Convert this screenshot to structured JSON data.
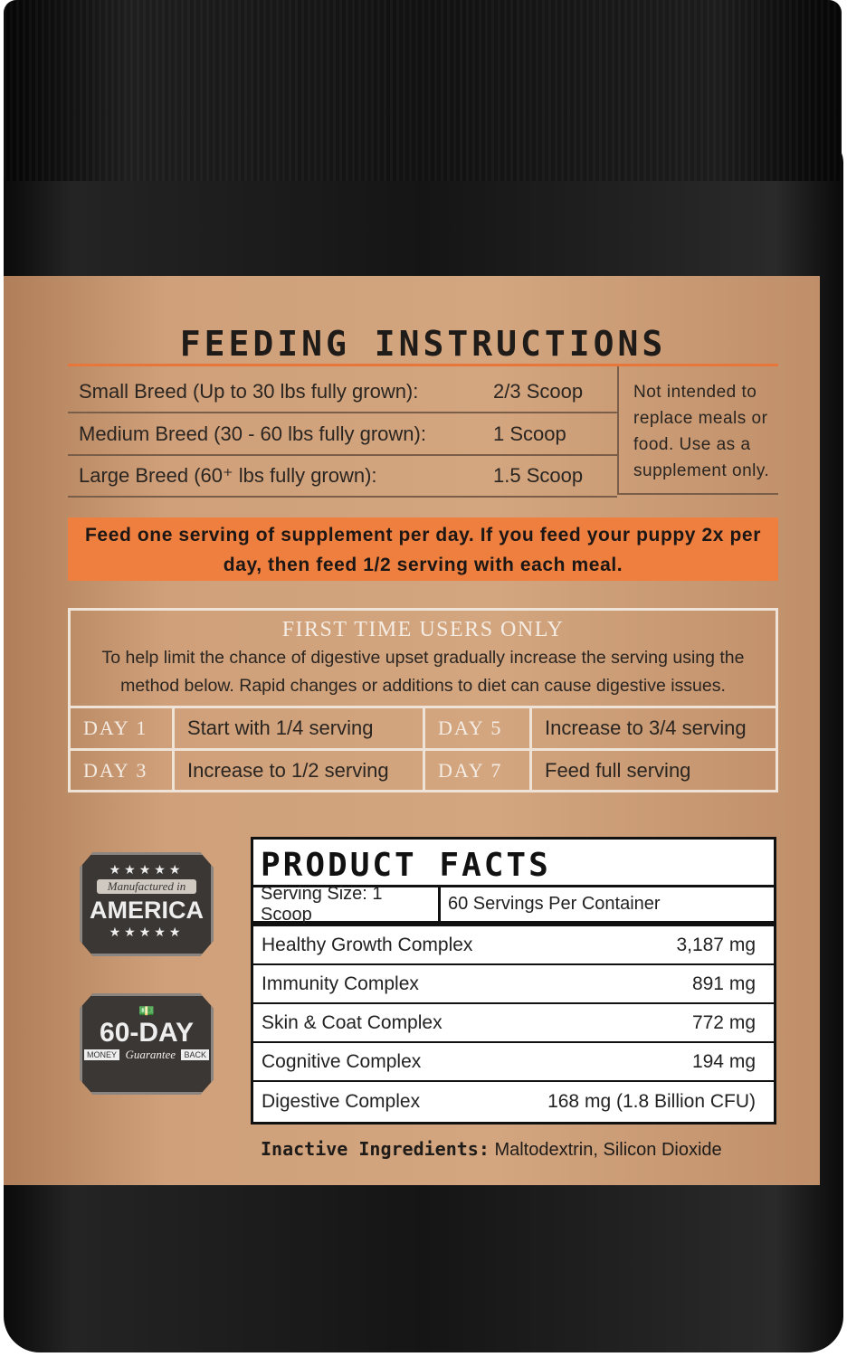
{
  "feeding": {
    "title": "FEEDING INSTRUCTIONS",
    "rows": [
      {
        "breed": "Small Breed (Up to 30 lbs fully grown):",
        "amount": "2/3 Scoop"
      },
      {
        "breed": "Medium Breed (30 - 60 lbs fully grown):",
        "amount": "1 Scoop"
      },
      {
        "breed": "Large Breed (60⁺ lbs fully grown):",
        "amount": "1.5 Scoop"
      }
    ],
    "note": "Not intended to replace meals or food. Use as a supplement only.",
    "callout": "Feed one serving of supplement per day. If you feed your puppy 2x per day, then feed 1/2 serving with each meal."
  },
  "first_time": {
    "title": "FIRST TIME USERS ONLY",
    "text": "To help limit the chance of digestive upset gradually increase the serving using the method below. Rapid changes or additions to diet can cause digestive issues.",
    "days": [
      {
        "day": "DAY 1",
        "step": "Start with 1/4 serving"
      },
      {
        "day": "DAY 5",
        "step": "Increase to 3/4 serving"
      },
      {
        "day": "DAY 3",
        "step": "Increase to 1/2 serving"
      },
      {
        "day": "DAY 7",
        "step": "Feed full serving"
      }
    ]
  },
  "badges": {
    "america": {
      "top": "Manufactured in",
      "main": "AMERICA"
    },
    "guarantee": {
      "main": "60-DAY",
      "left": "MONEY",
      "mid": "Guarantee",
      "right": "BACK"
    }
  },
  "product_facts": {
    "title": "PRODUCT FACTS",
    "serving_size": "Serving Size: 1 Scoop",
    "servings": "60 Servings Per Container",
    "rows": [
      {
        "name": "Healthy Growth Complex",
        "amount": "3,187 mg"
      },
      {
        "name": "Immunity Complex",
        "amount": "891 mg"
      },
      {
        "name": "Skin & Coat Complex",
        "amount": "772 mg"
      },
      {
        "name": "Cognitive Complex",
        "amount": "194 mg"
      },
      {
        "name": "Digestive Complex",
        "amount": "168 mg (1.8 Billion CFU)"
      }
    ],
    "inactive_label": "Inactive Ingredients:",
    "inactive": "Maltodextrin, Silicon Dioxide"
  }
}
